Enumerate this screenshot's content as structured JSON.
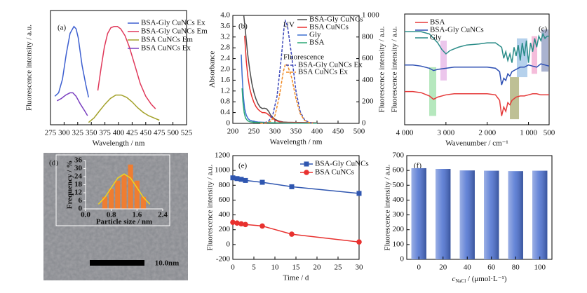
{
  "chart_data": [
    {
      "type": "line",
      "panel_label": "(a)",
      "xlabel": "Wavelength / nm",
      "ylabel": "Fluorescence intensity / a.u.",
      "xlim": [
        275,
        525
      ],
      "xticks": [
        275,
        300,
        325,
        350,
        375,
        400,
        425,
        450,
        475,
        500,
        525
      ],
      "ylim": [
        0,
        100
      ],
      "series": [
        {
          "name": "BSA-Gly CuNCs Ex",
          "color": "#3d5fd0",
          "x": [
            283,
            290,
            297,
            304,
            311,
            318,
            322,
            326,
            333,
            340,
            345
          ],
          "values": [
            25,
            28,
            40,
            62,
            80,
            86,
            84,
            76,
            52,
            35,
            24
          ]
        },
        {
          "name": "BSA-Gly CuNCs Em",
          "color": "#e0385a",
          "x": [
            362,
            368,
            374,
            380,
            386,
            392,
            398,
            404,
            412,
            420,
            430,
            440,
            450,
            460,
            468
          ],
          "values": [
            30,
            50,
            68,
            80,
            85,
            86,
            86,
            84,
            78,
            68,
            52,
            36,
            25,
            18,
            14
          ]
        },
        {
          "name": "BSA CuNCs Em",
          "color": "#a3a12a",
          "x": [
            345,
            355,
            365,
            375,
            385,
            395,
            400,
            405,
            415,
            425,
            435,
            445,
            455,
            465,
            475
          ],
          "values": [
            2,
            6,
            12,
            18,
            23,
            26,
            26,
            26,
            24,
            20,
            15,
            11,
            8,
            6,
            4
          ]
        },
        {
          "name": "BSA CuNCs Ex",
          "color": "#7a3fc0",
          "x": [
            287,
            295,
            303,
            311,
            316,
            322,
            330,
            338,
            343
          ],
          "values": [
            21,
            23,
            26,
            28,
            28,
            25,
            18,
            12,
            8
          ]
        }
      ]
    },
    {
      "type": "line",
      "panel_label": "(b)",
      "xlabel": "Wavelength / nm",
      "ylabel": "Absorbance",
      "y2label": "Fluorescence intensity / a.u.",
      "y2_color": "#1f2a8c",
      "xlim": [
        200,
        500
      ],
      "xticks": [
        200,
        250,
        300,
        350,
        400,
        450,
        500
      ],
      "ylim": [
        0,
        4
      ],
      "yticks": [
        0,
        0.4,
        0.8,
        1.2,
        1.6,
        {
          "value": 2,
          "label": "2.0"
        },
        2.4,
        2.8,
        3.2,
        3.6,
        {
          "value": 4,
          "label": "4.0"
        }
      ],
      "y2lim": [
        0,
        1000
      ],
      "y2ticks": [
        0,
        200,
        400,
        600,
        800,
        {
          "value": 1000,
          "label": "1 000"
        }
      ],
      "annotations": [
        "UV",
        "Fluorescence"
      ],
      "series": [
        {
          "name": "BSA-Gly CuNCs",
          "color": "#4d4d4d",
          "x": [
            226,
            230,
            235,
            240,
            245,
            250,
            255,
            260,
            265,
            270,
            275,
            280,
            285,
            290,
            300,
            310,
            320,
            330,
            350,
            400
          ],
          "values": [
            4.0,
            3.4,
            2.6,
            2.0,
            1.5,
            1.15,
            0.9,
            0.72,
            0.6,
            0.55,
            0.56,
            0.54,
            0.45,
            0.3,
            0.15,
            0.08,
            0.05,
            0.04,
            0.03,
            0.02
          ]
        },
        {
          "name": "BSA CuNCs",
          "color": "#e8312f",
          "x": [
            228,
            232,
            236,
            240,
            245,
            250,
            255,
            260,
            265,
            270,
            275,
            280,
            290,
            300,
            310,
            320,
            350,
            400
          ],
          "values": [
            3.25,
            2.3,
            1.7,
            1.3,
            1.0,
            0.78,
            0.62,
            0.52,
            0.45,
            0.4,
            0.4,
            0.38,
            0.25,
            0.12,
            0.06,
            0.04,
            0.03,
            0.02
          ]
        },
        {
          "name": "Gly",
          "color": "#3c6fd1",
          "x": [
            220,
            222,
            225,
            228,
            232,
            236,
            240,
            250,
            260,
            280,
            300,
            350,
            400
          ],
          "values": [
            2.55,
            1.8,
            1.0,
            0.55,
            0.3,
            0.18,
            0.12,
            0.07,
            0.05,
            0.03,
            0.02,
            0.01,
            0.01
          ]
        },
        {
          "name": "BSA",
          "color": "#2aa876",
          "x": [
            222,
            224,
            227,
            230,
            235,
            240,
            250,
            260,
            280,
            300,
            350,
            400
          ],
          "values": [
            1.3,
            0.8,
            0.4,
            0.2,
            0.1,
            0.06,
            0.04,
            0.03,
            0.02,
            0.02,
            0.01,
            0.01
          ]
        },
        {
          "name": "BSA-Gly CuNCs Ex",
          "color": "#3b46b8",
          "dash": true,
          "axis": "y2",
          "x": [
            265,
            275,
            285,
            295,
            305,
            315,
            322,
            325,
            330,
            340,
            350,
            360,
            370,
            380,
            390
          ],
          "values": [
            0,
            5,
            20,
            80,
            250,
            600,
            900,
            950,
            900,
            620,
            300,
            110,
            35,
            10,
            2
          ]
        },
        {
          "name": "BSA CuNCs Ex",
          "color": "#f08a24",
          "dash": true,
          "axis": "y2",
          "x": [
            265,
            280,
            290,
            300,
            310,
            320,
            325,
            330,
            340,
            350,
            360,
            370,
            380,
            390
          ],
          "values": [
            0,
            5,
            20,
            70,
            240,
            480,
            550,
            540,
            420,
            230,
            90,
            30,
            8,
            2
          ]
        }
      ]
    },
    {
      "type": "line",
      "panel_label": "(c)",
      "xlabel": "Wavenumber / cm⁻¹",
      "ylabel": "Fluorescence intensity / a.u.",
      "xlim": [
        4000,
        500
      ],
      "xticks": [
        {
          "value": 4000,
          "label": "4 000"
        },
        {
          "value": 3000,
          "label": "3 000"
        },
        {
          "value": 2000,
          "label": "2 000"
        },
        {
          "value": 1000,
          "label": "1 000"
        },
        500
      ],
      "ylim": [
        0,
        100
      ],
      "highlights": [
        {
          "x": [
            3405,
            3235
          ],
          "y": [
            8,
            52
          ],
          "color": "#9ee0a8"
        },
        {
          "x": [
            3134,
            2980
          ],
          "y": [
            40,
            76
          ],
          "color": "#e6b3e6"
        },
        {
          "x": [
            1451,
            1230
          ],
          "y": [
            5,
            43
          ],
          "color": "#a8ab72"
        },
        {
          "x": [
            1282,
            1027
          ],
          "y": [
            43,
            78
          ],
          "color": "#9cc2e6"
        },
        {
          "x": [
            925,
            789
          ],
          "y": [
            46,
            80
          ],
          "color": "#f2a7cf"
        },
        {
          "x": [
            687,
            517
          ],
          "y": [
            48,
            86
          ],
          "color": "#8e9ac0"
        }
      ],
      "series": [
        {
          "name": "BSA",
          "color": "#e53a3a",
          "x": [
            4000,
            3800,
            3600,
            3400,
            3300,
            3200,
            3000,
            2800,
            2500,
            2200,
            2000,
            1800,
            1700,
            1650,
            1600,
            1550,
            1500,
            1450,
            1400,
            1300,
            1200,
            1100,
            1000,
            900,
            800,
            700,
            600,
            500
          ],
          "values": [
            30,
            30,
            29,
            26,
            23,
            25,
            27,
            28,
            28,
            28,
            28,
            27,
            22,
            8,
            16,
            12,
            20,
            18,
            22,
            25,
            26,
            26,
            27,
            28,
            28,
            27,
            27,
            27
          ]
        },
        {
          "name": "BSA-Gly CuNCs",
          "color": "#2d4fb3",
          "x": [
            4000,
            3800,
            3600,
            3400,
            3300,
            3200,
            3000,
            2800,
            2500,
            2200,
            2000,
            1800,
            1700,
            1650,
            1600,
            1550,
            1500,
            1450,
            1400,
            1300,
            1200,
            1100,
            1000,
            900,
            800,
            700,
            600,
            500
          ],
          "values": [
            54,
            54,
            53,
            51,
            49,
            50,
            51,
            52,
            52,
            52,
            52,
            51,
            48,
            36,
            42,
            40,
            46,
            44,
            48,
            50,
            52,
            52,
            54,
            53,
            52,
            55,
            54,
            53
          ]
        },
        {
          "name": "Gly",
          "color": "#2a8c88",
          "x": [
            4000,
            3800,
            3600,
            3400,
            3200,
            3100,
            3000,
            2900,
            2700,
            2500,
            2200,
            2000,
            1800,
            1650,
            1600,
            1550,
            1500,
            1450,
            1400,
            1350,
            1300,
            1250,
            1200,
            1150,
            1100,
            1050,
            1000,
            950,
            900,
            850,
            800,
            750,
            700,
            650,
            600,
            550,
            500
          ],
          "values": [
            84,
            84,
            84,
            82,
            74,
            68,
            64,
            67,
            70,
            72,
            73,
            74,
            74,
            70,
            60,
            66,
            58,
            64,
            56,
            70,
            62,
            72,
            58,
            74,
            62,
            76,
            56,
            74,
            66,
            78,
            70,
            80,
            76,
            82,
            78,
            80,
            80
          ]
        }
      ]
    },
    {
      "type": "image",
      "panel_label": "(d)",
      "scale_label": "10.0nm"
    },
    {
      "type": "histogram",
      "xlabel": "Particle size / nm",
      "ylabel": "Frequency / %",
      "axis_color": "#ffffff",
      "color": "#ef7d31",
      "xlim": [
        0,
        2.4
      ],
      "xticks": [
        {
          "value": 0,
          "label": "0.0"
        },
        0.8,
        1.6,
        2.4
      ],
      "ylim": [
        0,
        36
      ],
      "yticks": [
        0,
        6,
        12,
        18,
        24,
        30,
        36
      ],
      "bins": [
        0.5,
        0.7,
        0.9,
        1.1,
        1.3,
        1.5,
        1.7,
        1.9
      ],
      "counts": [
        9,
        15,
        21,
        25,
        33,
        21,
        9
      ],
      "fit": {
        "color": "#f2d21c",
        "x": [
          0.4,
          0.6,
          0.8,
          1.0,
          1.2,
          1.4,
          1.6,
          1.8,
          2.0
        ],
        "values": [
          3.5,
          8.5,
          15.8,
          22.9,
          26,
          22.9,
          15.8,
          8.5,
          3.5
        ]
      }
    },
    {
      "type": "line",
      "panel_label": "(e)",
      "xlabel": "Time / d",
      "ylabel": "Fluorescence intensity / a.u.",
      "xlim": [
        0,
        30
      ],
      "xticks": [
        0,
        5,
        10,
        15,
        20,
        25,
        30
      ],
      "ylim": [
        -200,
        1200
      ],
      "yticks": [
        -200,
        0,
        200,
        400,
        600,
        800,
        1000,
        1200
      ],
      "series": [
        {
          "name": "BSA-Gly CuNCs",
          "color": "#2f56b0",
          "marker": "square",
          "x": [
            0,
            1,
            2,
            3,
            7,
            14,
            30
          ],
          "values": [
            900,
            890,
            880,
            865,
            840,
            780,
            690
          ]
        },
        {
          "name": "BSA CuNCs",
          "color": "#e8312f",
          "marker": "circle",
          "x": [
            0,
            1,
            2,
            3,
            7,
            14,
            30
          ],
          "values": [
            300,
            290,
            280,
            270,
            250,
            140,
            35
          ]
        }
      ]
    },
    {
      "type": "bar",
      "panel_label": "(f)",
      "xlabel": {
        "symbol": "c",
        "subscript": "NaCl",
        "unit": " / (μmol·L⁻¹)"
      },
      "ylabel": "Fluorescence intensity / a.u.",
      "color": "#4a6fd0",
      "categories": [
        "0",
        "20",
        "40",
        "60",
        "80",
        "100"
      ],
      "values": [
        615,
        610,
        600,
        598,
        595,
        598
      ],
      "ylim": [
        0,
        700
      ],
      "yticks": [
        0,
        100,
        200,
        300,
        400,
        500,
        600,
        700
      ]
    }
  ]
}
